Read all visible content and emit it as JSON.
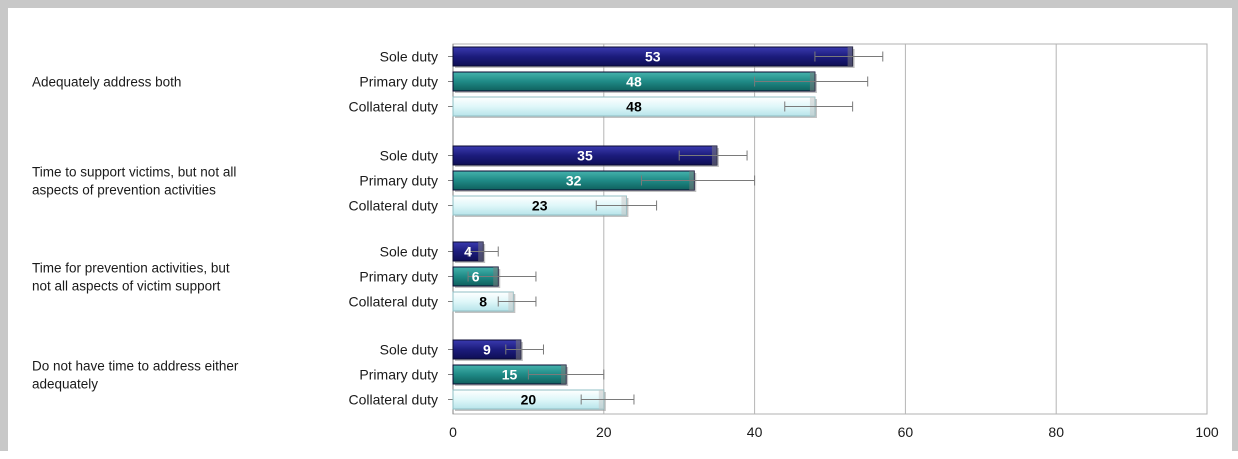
{
  "chart_data": {
    "type": "bar",
    "orientation": "horizontal",
    "title": "",
    "xlabel": "",
    "ylabel": "",
    "xlim": [
      0,
      100
    ],
    "x_ticks": [
      0,
      20,
      40,
      60,
      80,
      100
    ],
    "grid": "vertical",
    "legend": "none",
    "series_labels": [
      "Sole duty",
      "Primary duty",
      "Collateral duty"
    ],
    "series_colors": [
      "#1c1c7c",
      "#1f8a86",
      "#dff7f9"
    ],
    "groups": [
      {
        "label_lines": [
          "Adequately address both"
        ],
        "bars": [
          {
            "series": "Sole duty",
            "value": 53,
            "error": [
              48,
              57
            ]
          },
          {
            "series": "Primary duty",
            "value": 48,
            "error": [
              40,
              55
            ]
          },
          {
            "series": "Collateral duty",
            "value": 48,
            "error": [
              44,
              53
            ]
          }
        ]
      },
      {
        "label_lines": [
          "Time to support victims, but not all",
          "aspects of prevention activities"
        ],
        "bars": [
          {
            "series": "Sole duty",
            "value": 35,
            "error": [
              30,
              39
            ]
          },
          {
            "series": "Primary duty",
            "value": 32,
            "error": [
              25,
              40
            ]
          },
          {
            "series": "Collateral duty",
            "value": 23,
            "error": [
              19,
              27
            ]
          }
        ]
      },
      {
        "label_lines": [
          "Time for prevention activities, but",
          "not all aspects of victim support"
        ],
        "bars": [
          {
            "series": "Sole duty",
            "value": 4,
            "error": [
              2,
              6
            ]
          },
          {
            "series": "Primary duty",
            "value": 6,
            "error": [
              2,
              11
            ]
          },
          {
            "series": "Collateral duty",
            "value": 8,
            "error": [
              6,
              11
            ]
          }
        ]
      },
      {
        "label_lines": [
          "Do not have time to address either",
          "adequately"
        ],
        "bars": [
          {
            "series": "Sole duty",
            "value": 9,
            "error": [
              7,
              12
            ]
          },
          {
            "series": "Primary duty",
            "value": 15,
            "error": [
              10,
              20
            ]
          },
          {
            "series": "Collateral duty",
            "value": 20,
            "error": [
              17,
              24
            ]
          }
        ]
      }
    ]
  }
}
